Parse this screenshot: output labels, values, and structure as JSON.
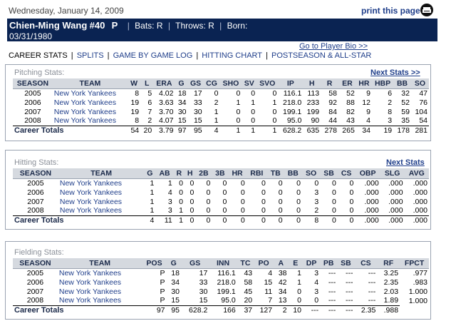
{
  "top": {
    "date": "Wednesday, January 14, 2009",
    "print_label": "print this page"
  },
  "player": {
    "name": "Chien-Ming Wang",
    "number": "#40",
    "position": "P",
    "bats": "Bats: R",
    "throws": "Throws: R",
    "born_label": "Born:",
    "born_date": "03/31/1980"
  },
  "bio_link": "Go to Player Bio >>",
  "nav": {
    "items": [
      "CAREER STATS",
      "SPLITS",
      "GAME BY GAME LOG",
      "HITTING CHART",
      "POSTSEASON & ALL-STAR"
    ]
  },
  "next_stats": "Next Stats >>",
  "pitching": {
    "title": "Pitching Stats:",
    "headers": [
      "SEASON",
      "TEAM",
      "W",
      "L",
      "ERA",
      "G",
      "GS",
      "CG",
      "SHO",
      "SV",
      "SVO",
      "IP",
      "H",
      "R",
      "ER",
      "HR",
      "HBP",
      "BB",
      "SO"
    ],
    "rows": [
      [
        "2005",
        "New York Yankees",
        "8",
        "5",
        "4.02",
        "18",
        "17",
        "0",
        "0",
        "0",
        "0",
        "116.1",
        "113",
        "58",
        "52",
        "9",
        "6",
        "32",
        "47"
      ],
      [
        "2006",
        "New York Yankees",
        "19",
        "6",
        "3.63",
        "34",
        "33",
        "2",
        "1",
        "1",
        "1",
        "218.0",
        "233",
        "92",
        "88",
        "12",
        "2",
        "52",
        "76"
      ],
      [
        "2007",
        "New York Yankees",
        "19",
        "7",
        "3.70",
        "30",
        "30",
        "1",
        "0",
        "0",
        "0",
        "199.1",
        "199",
        "84",
        "82",
        "9",
        "8",
        "59",
        "104"
      ],
      [
        "2008",
        "New York Yankees",
        "8",
        "2",
        "4.07",
        "15",
        "15",
        "1",
        "0",
        "0",
        "0",
        "95.0",
        "90",
        "44",
        "43",
        "4",
        "3",
        "35",
        "54"
      ]
    ],
    "total_label": "Career Totals",
    "totals": [
      "54",
      "20",
      "3.79",
      "97",
      "95",
      "4",
      "1",
      "1",
      "1",
      "628.2",
      "635",
      "278",
      "265",
      "34",
      "19",
      "178",
      "281"
    ]
  },
  "hitting": {
    "title": "Hitting Stats:",
    "headers": [
      "SEASON",
      "TEAM",
      "G",
      "AB",
      "R",
      "H",
      "2B",
      "3B",
      "HR",
      "RBI",
      "TB",
      "BB",
      "SO",
      "SB",
      "CS",
      "OBP",
      "SLG",
      "AVG"
    ],
    "rows": [
      [
        "2005",
        "New York Yankees",
        "1",
        "1",
        "0",
        "0",
        "0",
        "0",
        "0",
        "0",
        "0",
        "0",
        "0",
        "0",
        "0",
        ".000",
        ".000",
        ".000"
      ],
      [
        "2006",
        "New York Yankees",
        "1",
        "4",
        "0",
        "0",
        "0",
        "0",
        "0",
        "0",
        "0",
        "0",
        "3",
        "0",
        "0",
        ".000",
        ".000",
        ".000"
      ],
      [
        "2007",
        "New York Yankees",
        "1",
        "3",
        "0",
        "0",
        "0",
        "0",
        "0",
        "0",
        "0",
        "0",
        "3",
        "0",
        "0",
        ".000",
        ".000",
        ".000"
      ],
      [
        "2008",
        "New York Yankees",
        "1",
        "3",
        "1",
        "0",
        "0",
        "0",
        "0",
        "0",
        "0",
        "0",
        "2",
        "0",
        "0",
        ".000",
        ".000",
        ".000"
      ]
    ],
    "total_label": "Career Totals",
    "totals": [
      "4",
      "11",
      "1",
      "0",
      "0",
      "0",
      "0",
      "0",
      "0",
      "0",
      "8",
      "0",
      "0",
      ".000",
      ".000",
      ".000"
    ]
  },
  "fielding": {
    "title": "Fielding Stats:",
    "headers": [
      "SEASON",
      "TEAM",
      "POS",
      "G",
      "GS",
      "INN",
      "TC",
      "PO",
      "A",
      "E",
      "DP",
      "PB",
      "SB",
      "CS",
      "RF",
      "FPCT"
    ],
    "rows": [
      [
        "2005",
        "New York Yankees",
        "P",
        "18",
        "17",
        "116.1",
        "43",
        "4",
        "38",
        "1",
        "3",
        "---",
        "---",
        "---",
        "3.25",
        ".977"
      ],
      [
        "2006",
        "New York Yankees",
        "P",
        "34",
        "33",
        "218.0",
        "58",
        "15",
        "42",
        "1",
        "4",
        "---",
        "---",
        "---",
        "2.35",
        ".983"
      ],
      [
        "2007",
        "New York Yankees",
        "P",
        "30",
        "30",
        "199.1",
        "45",
        "11",
        "34",
        "0",
        "3",
        "---",
        "---",
        "---",
        "2.03",
        "1.000"
      ],
      [
        "2008",
        "New York Yankees",
        "P",
        "15",
        "15",
        "95.0",
        "20",
        "7",
        "13",
        "0",
        "0",
        "---",
        "---",
        "---",
        "1.89",
        "1.000"
      ]
    ],
    "total_label": "Career Totals",
    "totals": [
      "97",
      "95",
      "628.2",
      "166",
      "37",
      "127",
      "2",
      "10",
      "---",
      "---",
      "---",
      "2.35",
      ".988"
    ]
  }
}
